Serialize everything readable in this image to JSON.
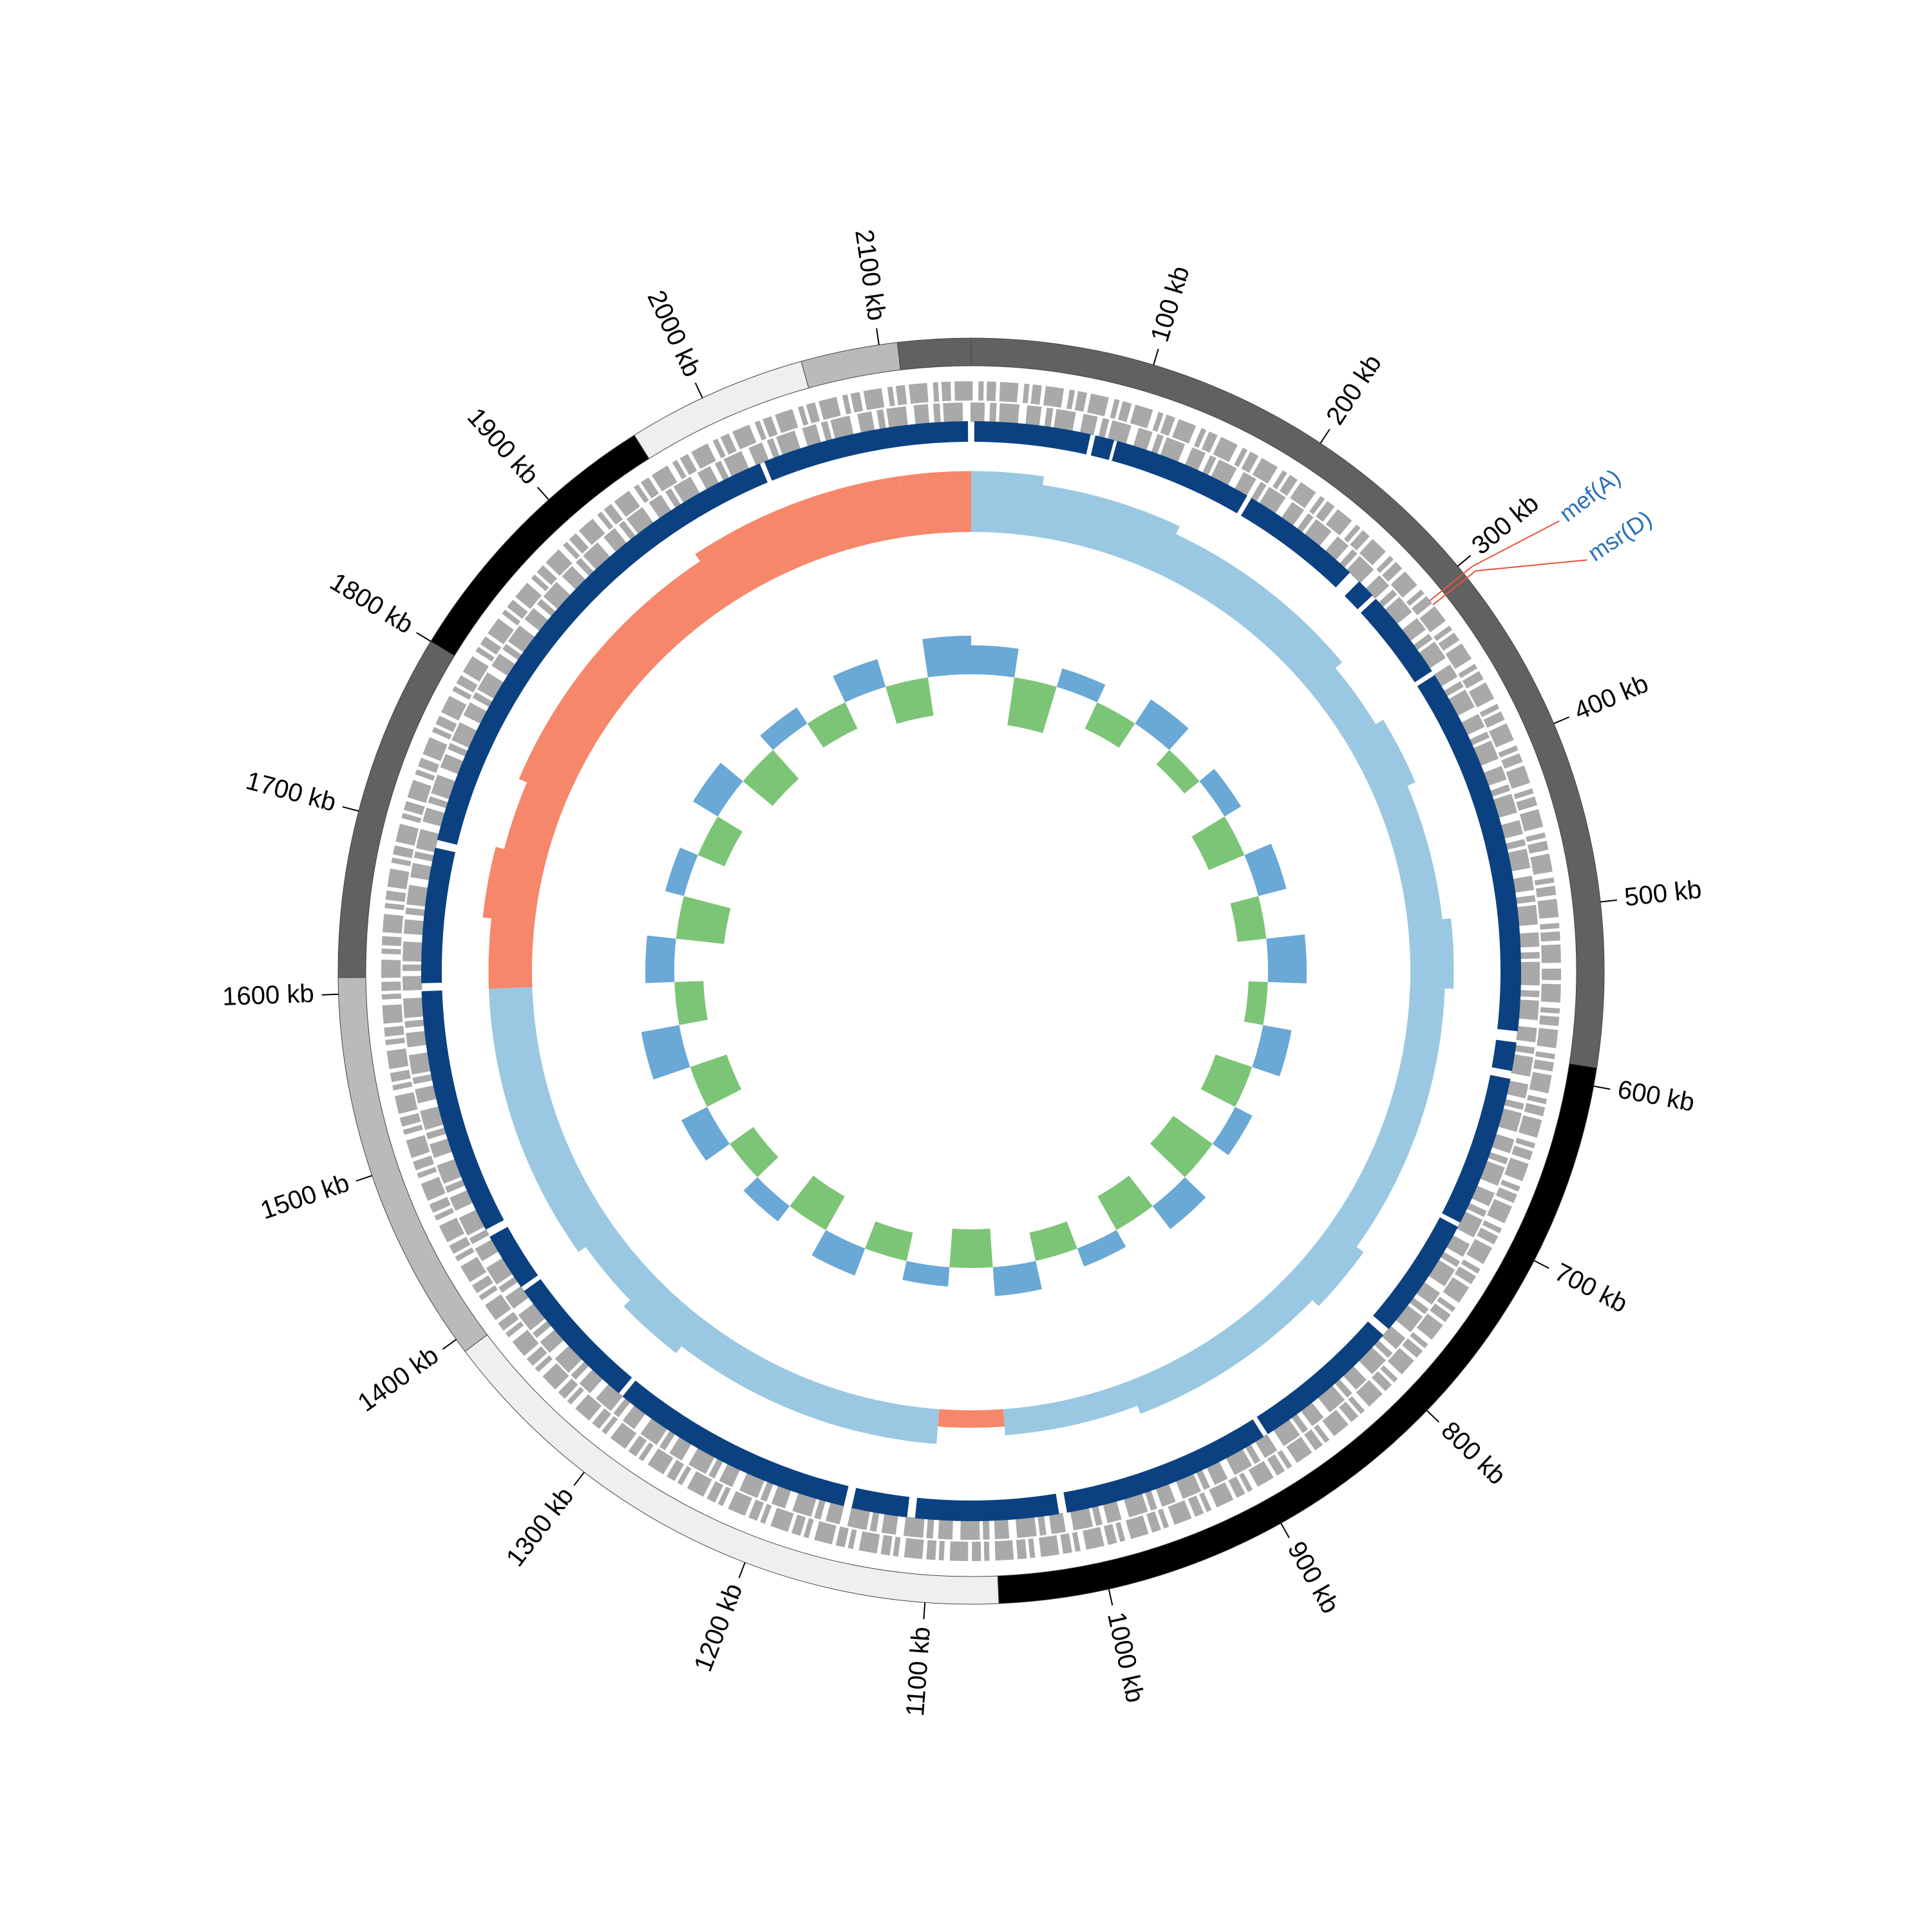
{
  "chart_data": {
    "type": "circular_genome",
    "xlim": [
      0,
      2150
    ],
    "xticks": [
      {
        "value": 100,
        "label": "100 kb"
      },
      {
        "value": 200,
        "label": "200 kb"
      },
      {
        "value": 300,
        "label": "300 kb"
      },
      {
        "value": 400,
        "label": "400 kb"
      },
      {
        "value": 500,
        "label": "500 kb"
      },
      {
        "value": 600,
        "label": "600 kb"
      },
      {
        "value": 700,
        "label": "700 kb"
      },
      {
        "value": 800,
        "label": "800 kb"
      },
      {
        "value": 900,
        "label": "900 kb"
      },
      {
        "value": 1000,
        "label": "1000 kb"
      },
      {
        "value": 1100,
        "label": "1100 kb"
      },
      {
        "value": 1200,
        "label": "1200 kb"
      },
      {
        "value": 1300,
        "label": "1300 kb"
      },
      {
        "value": 1400,
        "label": "1400 kb"
      },
      {
        "value": 1500,
        "label": "1500 kb"
      },
      {
        "value": 1600,
        "label": "1600 kb"
      },
      {
        "value": 1700,
        "label": "1700 kb"
      },
      {
        "value": 1800,
        "label": "1800 kb"
      },
      {
        "value": 1900,
        "label": "1900 kb"
      },
      {
        "value": 2000,
        "label": "2000 kb"
      },
      {
        "value": 2100,
        "label": "2100 kb"
      }
    ],
    "contigs": [
      {
        "start": 0,
        "end": 590,
        "color": "#616161"
      },
      {
        "start": 590,
        "end": 1060,
        "color": "#000000"
      },
      {
        "start": 1060,
        "end": 1392,
        "color": "#efefef"
      },
      {
        "start": 1392,
        "end": 1609,
        "color": "#bababa"
      },
      {
        "start": 1609,
        "end": 1800,
        "color": "#616161"
      },
      {
        "start": 1800,
        "end": 1958,
        "color": "#000000"
      },
      {
        "start": 1958,
        "end": 2057,
        "color": "#efefef"
      },
      {
        "start": 2057,
        "end": 2110,
        "color": "#bababa"
      },
      {
        "start": 2110,
        "end": 2150,
        "color": "#616161"
      }
    ],
    "blocks": {
      "color": "#0b4181",
      "segments": [
        [
          2,
          75
        ],
        [
          78,
          90
        ],
        [
          92,
          180
        ],
        [
          183,
          260
        ],
        [
          268,
          280
        ],
        [
          283,
          340
        ],
        [
          343,
          575
        ],
        [
          582,
          600
        ],
        [
          605,
          700
        ],
        [
          703,
          780
        ],
        [
          785,
          880
        ],
        [
          883,
          1015
        ],
        [
          1020,
          1110
        ],
        [
          1115,
          1150
        ],
        [
          1155,
          1310
        ],
        [
          1313,
          1400
        ],
        [
          1403,
          1440
        ],
        [
          1445,
          1600
        ],
        [
          1605,
          1690
        ],
        [
          1695,
          2015
        ],
        [
          2018,
          2148
        ]
      ]
    },
    "skew": {
      "positive_color": "#9ac8e2",
      "negative_color": "#f6876a",
      "x": [
        25,
        75,
        125,
        175,
        225,
        275,
        325,
        375,
        425,
        475,
        525,
        575,
        625,
        675,
        725,
        775,
        825,
        875,
        925,
        975,
        1025,
        1075,
        1125,
        1175,
        1225,
        1275,
        1325,
        1375,
        1425,
        1475,
        1525,
        1575,
        1625,
        1675,
        1725,
        1775,
        1825,
        1875,
        1925,
        1975,
        2025,
        2075,
        2125
      ],
      "values": [
        0.07,
        0.06,
        0.06,
        0.05,
        0.05,
        0.05,
        0.04,
        0.05,
        0.04,
        0.04,
        0.05,
        0.04,
        0.04,
        0.04,
        0.04,
        0.05,
        0.04,
        0.04,
        0.04,
        0.03,
        0.03,
        -0.02,
        0.04,
        0.04,
        0.04,
        0.04,
        0.05,
        0.04,
        0.05,
        0.05,
        0.05,
        0.05,
        -0.05,
        -0.06,
        -0.05,
        -0.06,
        -0.06,
        -0.06,
        -0.06,
        -0.07,
        -0.07,
        -0.07,
        -0.07
      ]
    },
    "gc": {
      "positive_color": "#6aa8d6",
      "negative_color": "#7cc576",
      "x": [
        25,
        75,
        125,
        175,
        225,
        275,
        325,
        375,
        425,
        475,
        525,
        575,
        625,
        675,
        725,
        775,
        825,
        875,
        925,
        975,
        1025,
        1075,
        1125,
        1175,
        1225,
        1275,
        1325,
        1375,
        1425,
        1475,
        1525,
        1575,
        1625,
        1675,
        1725,
        1775,
        1825,
        1875,
        1925,
        1975,
        2025,
        2075,
        2125
      ],
      "values": [
        0.03,
        -0.05,
        0.02,
        -0.03,
        0.03,
        -0.02,
        0.02,
        -0.04,
        0.03,
        -0.03,
        0.04,
        -0.02,
        0.03,
        -0.04,
        0.02,
        -0.05,
        0.03,
        -0.04,
        0.02,
        -0.03,
        0.03,
        -0.04,
        0.02,
        -0.03,
        0.03,
        -0.04,
        0.02,
        -0.03,
        0.03,
        -0.04,
        0.04,
        -0.03,
        0.03,
        -0.05,
        0.02,
        -0.03,
        0.03,
        -0.04,
        0.02,
        -0.03,
        0.03,
        -0.04,
        0.04
      ]
    },
    "features": {
      "line_color": "#e8533a",
      "label_color": "#2a6fb8",
      "items": [
        {
          "label": "mef(A)",
          "position": 305
        },
        {
          "label": "msr(D)",
          "position": 308
        }
      ]
    }
  }
}
